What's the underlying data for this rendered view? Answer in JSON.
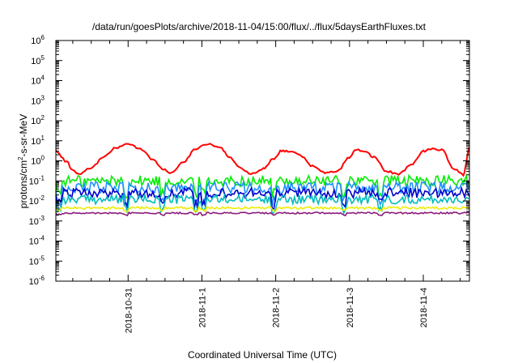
{
  "chart_data": {
    "type": "line",
    "title": "/data/run/goesPlots/archive/2018-11-04/15:00/flux/../flux/5daysEarthFluxes.txt",
    "xlabel": "Coordinated Universal Time (UTC)",
    "ylabel": {
      "before": "protons/cm",
      "sup": "2",
      "after": "-s-sr-MeV"
    },
    "x_range": [
      "2018-10-30T00:30:00Z",
      "2018-11-04T15:00:00Z"
    ],
    "x_ticks": [
      "2018-10-31",
      "2018-11-1",
      "2018-11-2",
      "2018-11-3",
      "2018-11-4"
    ],
    "y_scale": "log",
    "ylim": [
      1e-06,
      1000000.0
    ],
    "y_tick_exponents": [
      "-6",
      "-5",
      "-4",
      "-3",
      "-2",
      "-1",
      "0",
      "1",
      "2",
      "3",
      "4",
      "5",
      "6"
    ],
    "y_tick_base": "10",
    "grid": false,
    "legend": "none",
    "series": [
      {
        "color": "#ff0000",
        "x": [
          "2018-10-30T00:30:00Z",
          "2018-10-30T04:00:00Z",
          "2018-10-30T06:00:00Z",
          "2018-10-30T08:00:00Z",
          "2018-10-30T12:00:00Z",
          "2018-10-30T16:00:00Z",
          "2018-10-30T20:00:00Z",
          "2018-10-31T00:00:00Z",
          "2018-10-31T04:00:00Z",
          "2018-10-31T08:00:00Z",
          "2018-10-31T11:00:00Z",
          "2018-10-31T14:00:00Z",
          "2018-10-31T18:00:00Z",
          "2018-10-31T22:00:00Z",
          "2018-11-01T02:00:00Z",
          "2018-11-01T06:00:00Z",
          "2018-11-01T09:00:00Z",
          "2018-11-01T12:00:00Z",
          "2018-11-01T16:00:00Z",
          "2018-11-01T20:00:00Z",
          "2018-11-01T23:00:00Z",
          "2018-11-02T02:00:00Z",
          "2018-11-02T05:00:00Z",
          "2018-11-02T08:00:00Z",
          "2018-11-02T12:00:00Z",
          "2018-11-02T16:00:00Z",
          "2018-11-02T20:00:00Z",
          "2018-11-03T00:00:00Z",
          "2018-11-03T02:00:00Z",
          "2018-11-03T05:00:00Z",
          "2018-11-03T08:00:00Z",
          "2018-11-03T12:00:00Z",
          "2018-11-03T16:00:00Z",
          "2018-11-03T20:00:00Z",
          "2018-11-04T00:00:00Z",
          "2018-11-04T03:00:00Z",
          "2018-11-04T06:00:00Z",
          "2018-11-04T10:00:00Z",
          "2018-11-04T13:00:00Z",
          "2018-11-04T15:00:00Z"
        ],
        "y": [
          3.2,
          0.9,
          0.35,
          0.22,
          0.45,
          1.5,
          4.5,
          7.0,
          4.0,
          1.2,
          0.4,
          0.25,
          0.9,
          4.0,
          7.0,
          4.5,
          1.5,
          0.5,
          0.22,
          0.4,
          1.2,
          3.2,
          3.0,
          1.8,
          0.55,
          0.25,
          0.3,
          1.5,
          3.5,
          3.0,
          1.5,
          0.3,
          0.22,
          0.6,
          3.0,
          4.0,
          3.5,
          0.4,
          0.2,
          4.5
        ]
      },
      {
        "color": "#00ee00",
        "x": [
          "2018-10-30T00:30:00Z",
          "2018-11-04T15:00:00Z"
        ],
        "y": [
          0.1,
          0.1
        ]
      },
      {
        "color": "#1e90ff",
        "x": [
          "2018-10-30T00:30:00Z",
          "2018-11-04T15:00:00Z"
        ],
        "y": [
          0.045,
          0.045
        ]
      },
      {
        "color": "#0000cd",
        "x": [
          "2018-10-30T00:30:00Z",
          "2018-11-04T15:00:00Z"
        ],
        "y": [
          0.025,
          0.025
        ]
      },
      {
        "color": "#00bbbb",
        "x": [
          "2018-10-30T00:30:00Z",
          "2018-11-04T15:00:00Z"
        ],
        "y": [
          0.012,
          0.012
        ]
      },
      {
        "color": "#eeee00",
        "x": [
          "2018-10-30T00:30:00Z",
          "2018-11-04T15:00:00Z"
        ],
        "y": [
          0.0045,
          0.0045
        ]
      },
      {
        "color": "#8b1a7a",
        "x": [
          "2018-10-30T00:30:00Z",
          "2018-11-04T15:00:00Z"
        ],
        "y": [
          0.0025,
          0.0025
        ]
      }
    ]
  }
}
